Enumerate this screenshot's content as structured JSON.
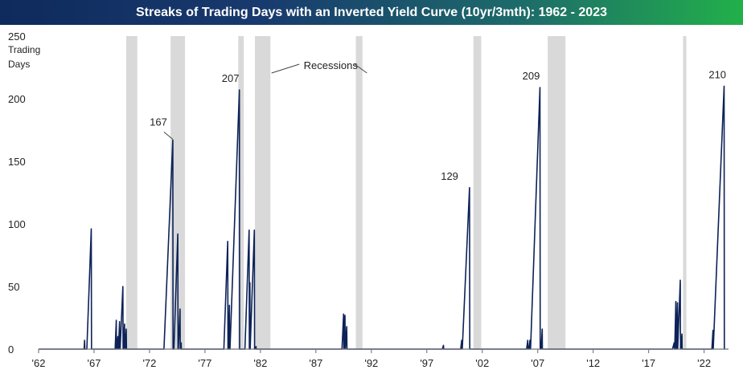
{
  "title": "Streaks of Trading Days with an Inverted Yield Curve (10yr/3mth): 1962 - 2023",
  "colors": {
    "line": "#0d2257",
    "recession": "#d9d9d9",
    "title_start": "#0f2a5c",
    "title_end": "#22b04a"
  },
  "chart_data": {
    "type": "line",
    "title": "Streaks of Trading Days with an Inverted Yield Curve (10yr/3mth): 1962 - 2023",
    "xlabel": "",
    "ylabel": "Trading Days",
    "ylim": [
      0,
      250
    ],
    "xlim": [
      1962,
      2024.2
    ],
    "yticks": [
      0,
      50,
      100,
      150,
      200,
      250
    ],
    "xticks": [
      {
        "value": 1962,
        "label": "'62"
      },
      {
        "value": 1967,
        "label": "'67"
      },
      {
        "value": 1972,
        "label": "'72"
      },
      {
        "value": 1977,
        "label": "'77"
      },
      {
        "value": 1982,
        "label": "'82"
      },
      {
        "value": 1987,
        "label": "'87"
      },
      {
        "value": 1992,
        "label": "'92"
      },
      {
        "value": 1997,
        "label": "'97"
      },
      {
        "value": 2002,
        "label": "'02"
      },
      {
        "value": 2007,
        "label": "'07"
      },
      {
        "value": 2012,
        "label": "'12"
      },
      {
        "value": 2017,
        "label": "'17"
      },
      {
        "value": 2022,
        "label": "'22"
      }
    ],
    "grid": false,
    "recessions": [
      {
        "start": 1969.9,
        "end": 1970.9
      },
      {
        "start": 1973.9,
        "end": 1975.2
      },
      {
        "start": 1980.0,
        "end": 1980.5
      },
      {
        "start": 1981.5,
        "end": 1982.9
      },
      {
        "start": 1990.6,
        "end": 1991.2
      },
      {
        "start": 2001.2,
        "end": 2001.9
      },
      {
        "start": 2007.9,
        "end": 2009.5
      },
      {
        "start": 2020.1,
        "end": 2020.4
      }
    ],
    "recession_label": "Recessions",
    "streaks": [
      {
        "start": 1966.1,
        "end": 1966.15,
        "peak": 7
      },
      {
        "start": 1966.35,
        "end": 1966.75,
        "peak": 96
      },
      {
        "start": 1968.9,
        "end": 1969.0,
        "peak": 23
      },
      {
        "start": 1969.05,
        "end": 1969.15,
        "peak": 10
      },
      {
        "start": 1969.2,
        "end": 1969.3,
        "peak": 22
      },
      {
        "start": 1969.35,
        "end": 1969.6,
        "peak": 50
      },
      {
        "start": 1969.65,
        "end": 1969.75,
        "peak": 20
      },
      {
        "start": 1969.8,
        "end": 1969.9,
        "peak": 16
      },
      {
        "start": 1973.3,
        "end": 1974.1,
        "peak": 167
      },
      {
        "start": 1974.2,
        "end": 1974.55,
        "peak": 92
      },
      {
        "start": 1974.6,
        "end": 1974.75,
        "peak": 32
      },
      {
        "start": 1974.78,
        "end": 1974.85,
        "peak": 5
      },
      {
        "start": 1978.7,
        "end": 1979.05,
        "peak": 86
      },
      {
        "start": 1979.1,
        "end": 1979.2,
        "peak": 35
      },
      {
        "start": 1979.25,
        "end": 1980.1,
        "peak": 207
      },
      {
        "start": 1980.6,
        "end": 1980.98,
        "peak": 95
      },
      {
        "start": 1981.0,
        "end": 1981.05,
        "peak": 53
      },
      {
        "start": 1981.07,
        "end": 1981.45,
        "peak": 95
      },
      {
        "start": 1981.5,
        "end": 1981.6,
        "peak": 2
      },
      {
        "start": 1989.35,
        "end": 1989.5,
        "peak": 28
      },
      {
        "start": 1989.52,
        "end": 1989.62,
        "peak": 27
      },
      {
        "start": 1989.66,
        "end": 1989.78,
        "peak": 18
      },
      {
        "start": 1998.4,
        "end": 1998.5,
        "peak": 3
      },
      {
        "start": 2000.05,
        "end": 2000.15,
        "peak": 7
      },
      {
        "start": 2000.2,
        "end": 2000.85,
        "peak": 129
      },
      {
        "start": 2006.0,
        "end": 2006.1,
        "peak": 7
      },
      {
        "start": 2006.2,
        "end": 2006.3,
        "peak": 7
      },
      {
        "start": 2006.35,
        "end": 2007.2,
        "peak": 209
      },
      {
        "start": 2007.3,
        "end": 2007.4,
        "peak": 16
      },
      {
        "start": 2019.15,
        "end": 2019.3,
        "peak": 5
      },
      {
        "start": 2019.35,
        "end": 2019.45,
        "peak": 38
      },
      {
        "start": 2019.5,
        "end": 2019.6,
        "peak": 37
      },
      {
        "start": 2019.62,
        "end": 2019.85,
        "peak": 55
      },
      {
        "start": 2019.9,
        "end": 2020.0,
        "peak": 12
      },
      {
        "start": 2022.7,
        "end": 2022.8,
        "peak": 15
      },
      {
        "start": 2022.82,
        "end": 2023.8,
        "peak": 210
      }
    ],
    "annotations": [
      {
        "text": "167",
        "x": 1974.1,
        "y": 167
      },
      {
        "text": "207",
        "x": 1980.1,
        "y": 207
      },
      {
        "text": "129",
        "x": 2000.85,
        "y": 129
      },
      {
        "text": "209",
        "x": 2007.2,
        "y": 209
      },
      {
        "text": "210",
        "x": 2023.8,
        "y": 210
      }
    ]
  }
}
